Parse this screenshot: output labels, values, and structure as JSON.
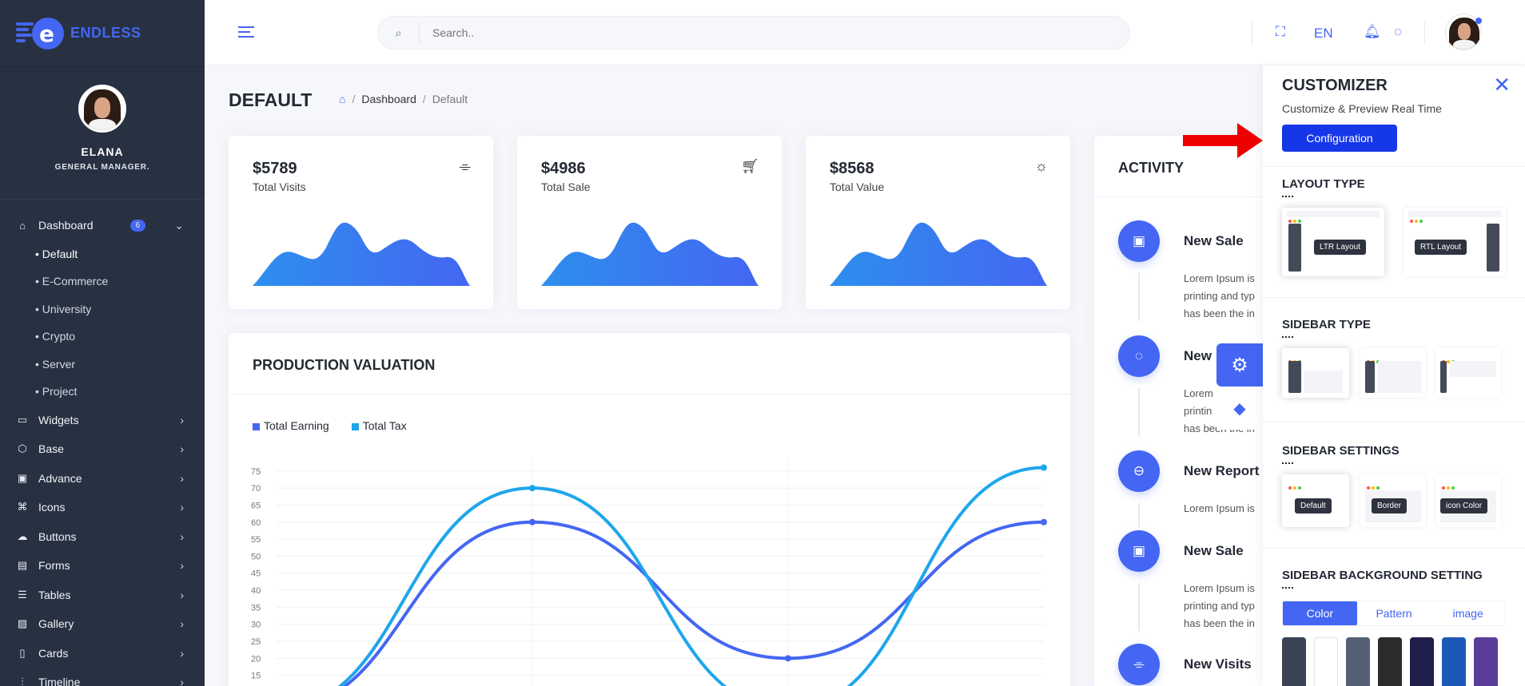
{
  "brand": {
    "name": "ENDLESS"
  },
  "user": {
    "name": "ELANA",
    "role": "GENERAL MANAGER."
  },
  "sidebar": {
    "items": [
      {
        "label": "Dashboard",
        "icon": "home-icon",
        "badge": "6"
      },
      {
        "label": "Widgets",
        "icon": "monitor-icon"
      },
      {
        "label": "Base",
        "icon": "box-icon"
      },
      {
        "label": "Advance",
        "icon": "folder-icon"
      },
      {
        "label": "Icons",
        "icon": "command-icon"
      },
      {
        "label": "Buttons",
        "icon": "cloud-icon"
      },
      {
        "label": "Forms",
        "icon": "file-icon"
      },
      {
        "label": "Tables",
        "icon": "server-icon"
      },
      {
        "label": "Gallery",
        "icon": "image-icon"
      },
      {
        "label": "Cards",
        "icon": "book-icon"
      },
      {
        "label": "Timeline",
        "icon": "sliders-icon"
      }
    ],
    "subitems": [
      "• Default",
      "• E-Commerce",
      "• University",
      "• Crypto",
      "• Server",
      "• Project"
    ]
  },
  "header": {
    "search_placeholder": "Search..",
    "lang": "EN"
  },
  "page": {
    "title": "DEFAULT",
    "breadcrumb": [
      "Dashboard",
      "Default"
    ]
  },
  "stats": [
    {
      "value": "$5789",
      "label": "Total Visits",
      "icon": "tag-icon"
    },
    {
      "value": "$4986",
      "label": "Total Sale",
      "icon": "cart-icon"
    },
    {
      "value": "$8568",
      "label": "Total Value",
      "icon": "sun-icon"
    }
  ],
  "production": {
    "title": "PRODUCTION VALUATION",
    "legend": [
      "Total Earning",
      "Total Tax"
    ]
  },
  "chart_data": {
    "type": "line",
    "y_ticks": [
      75,
      70,
      65,
      60,
      55,
      50,
      45,
      40,
      35,
      30,
      25,
      20,
      15
    ],
    "series": [
      {
        "name": "Total Earning",
        "color": "#4466f2",
        "points": [
          [
            0,
            5
          ],
          [
            1,
            60
          ],
          [
            2,
            20
          ],
          [
            3,
            60
          ]
        ]
      },
      {
        "name": "Total Tax",
        "color": "#1ea6ec",
        "points": [
          [
            0,
            5
          ],
          [
            1,
            70
          ],
          [
            2,
            5
          ],
          [
            3,
            76
          ]
        ]
      }
    ],
    "ylim": [
      10,
      78
    ]
  },
  "activity": {
    "title": "ACTIVITY",
    "items": [
      {
        "head": "New Sale",
        "icon": "bag-icon",
        "text": [
          "Lorem Ipsum is",
          "printing and typ",
          "has been the in"
        ]
      },
      {
        "head": "New",
        "icon": "chat-icon",
        "text": [
          "Lorem",
          "printin",
          "has been the in"
        ]
      },
      {
        "head": "New Report",
        "icon": "minus-circle-icon",
        "text": [
          "Lorem Ipsum is"
        ]
      },
      {
        "head": "New Sale",
        "icon": "bag-icon",
        "text": [
          "Lorem Ipsum is",
          "printing and typ",
          "has been the in"
        ]
      },
      {
        "head": "New Visits",
        "icon": "tag-icon",
        "text": []
      }
    ]
  },
  "customizer": {
    "title": "CUSTOMIZER",
    "subtitle": "Customize & Preview Real Time",
    "config_button": "Configuration",
    "layout_type": "LAYOUT TYPE",
    "layouts": [
      "LTR Layout",
      "RTL Layout"
    ],
    "sidebar_type": "SIDEBAR TYPE",
    "sidebar_settings": "SIDEBAR SETTINGS",
    "settings": [
      "Default",
      "Border",
      "icon Color"
    ],
    "bg_setting": "SIDEBAR BACKGROUND SETTING",
    "bg_tabs": [
      "Color",
      "Pattern",
      "image"
    ],
    "swatches": [
      "#3a4255",
      "#ffffff",
      "#546174",
      "#2b2c2e",
      "#1f1e4c",
      "#1c59b7",
      "#5a3e99"
    ]
  },
  "colors": {
    "primary": "#4466f2",
    "sidebar": "#283142",
    "arrow": "#ee0000"
  }
}
